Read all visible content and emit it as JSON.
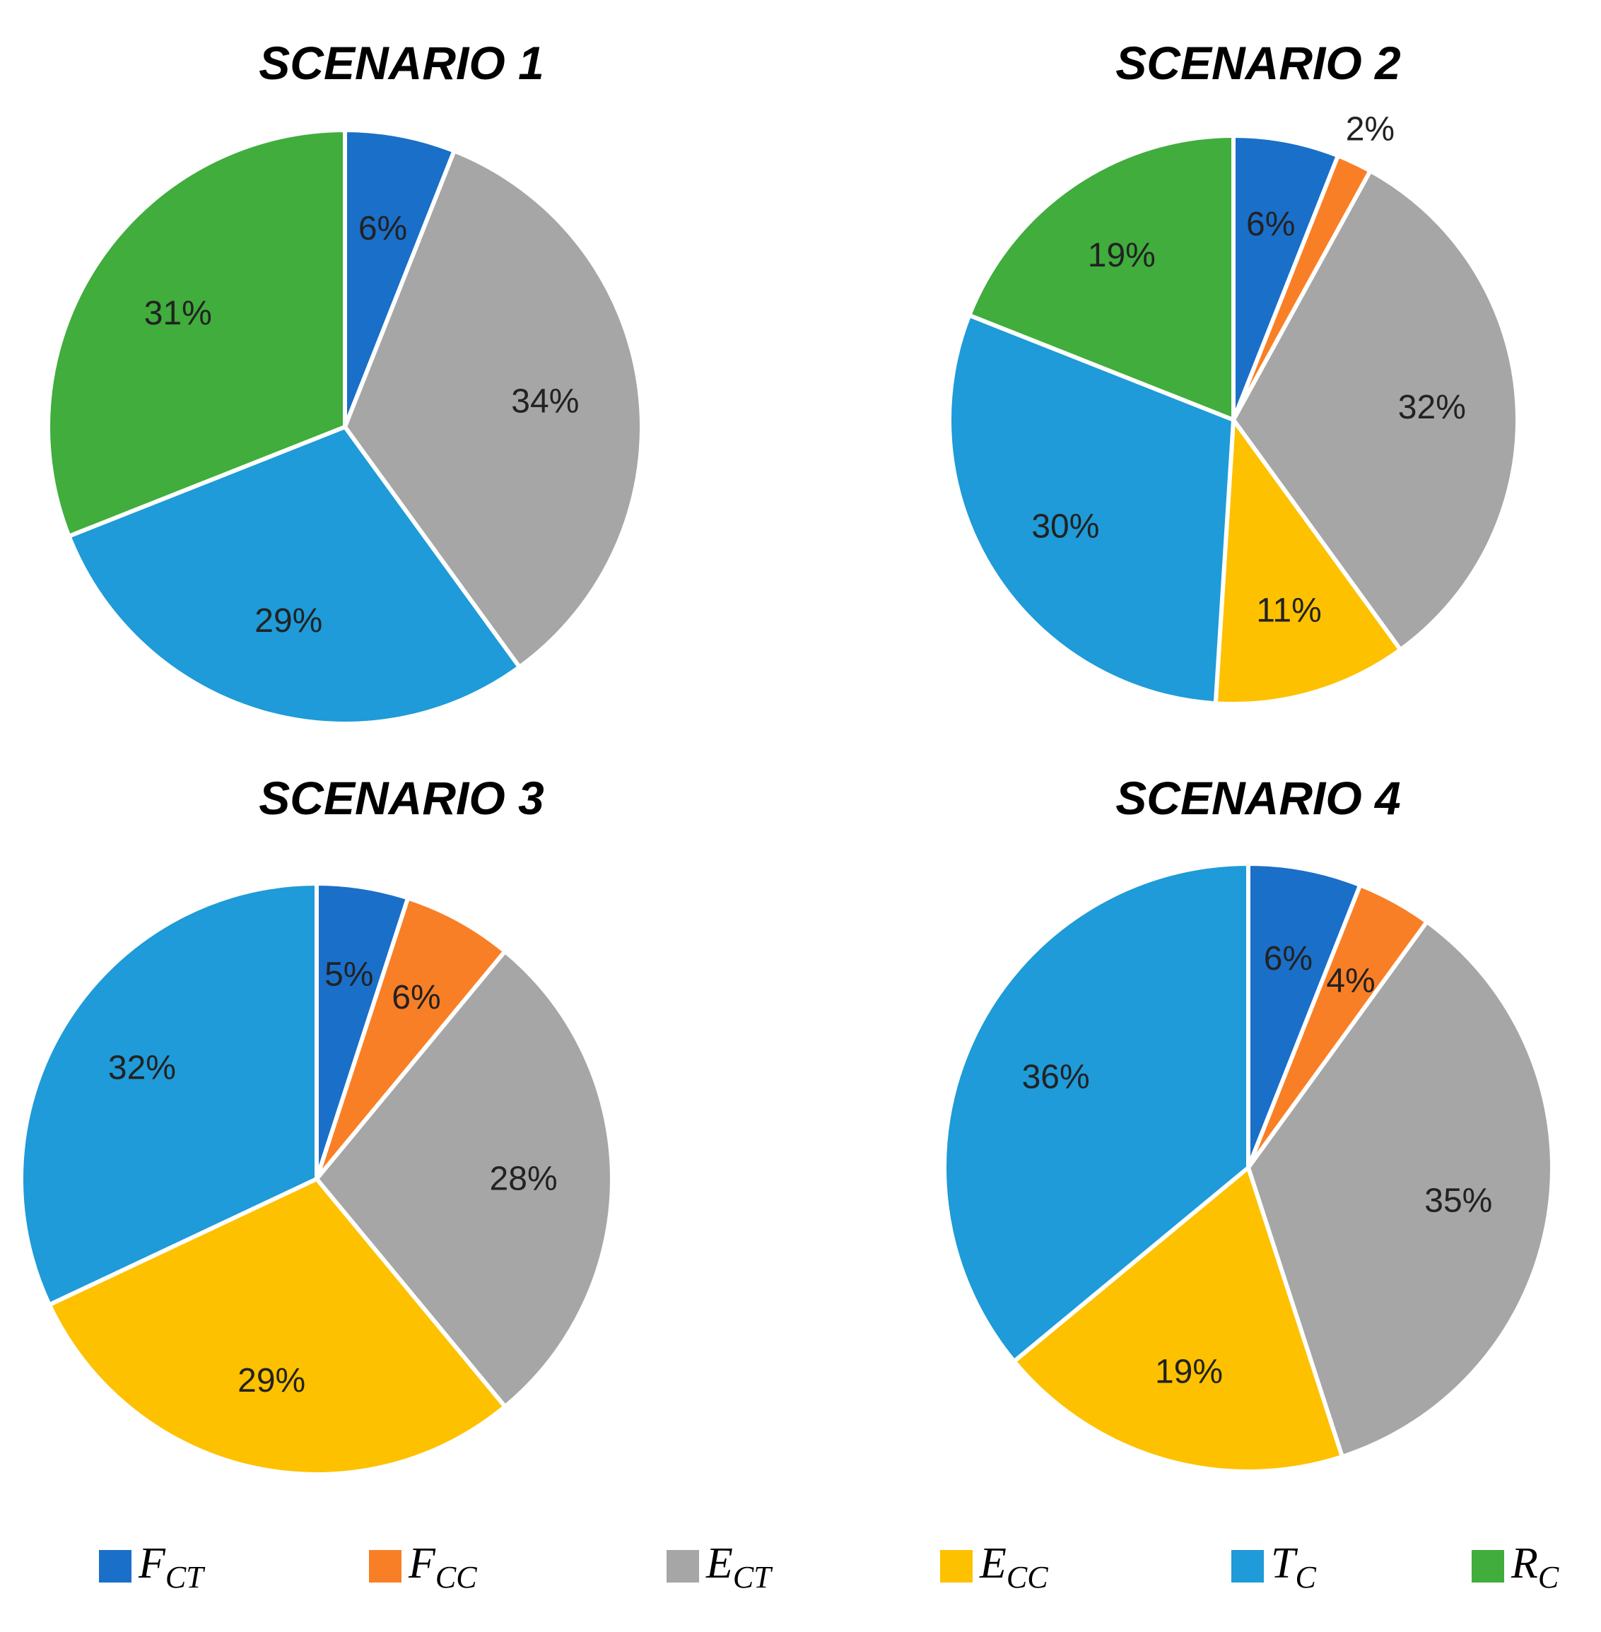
{
  "colors": {
    "F_CT": "#1a6fc9",
    "F_CC": "#f97f26",
    "E_CT": "#a6a6a6",
    "E_CC": "#fdc100",
    "T_C": "#1e9bd8",
    "R_C": "#40ad3d"
  },
  "legend": [
    {
      "key": "F_CT",
      "main": "F",
      "sub": "CT"
    },
    {
      "key": "F_CC",
      "main": "F",
      "sub": "CC"
    },
    {
      "key": "E_CT",
      "main": "E",
      "sub": "CT"
    },
    {
      "key": "E_CC",
      "main": "E",
      "sub": "CC"
    },
    {
      "key": "T_C",
      "main": "T",
      "sub": "C"
    },
    {
      "key": "R_C",
      "main": "R",
      "sub": "C"
    }
  ],
  "chart_data": [
    {
      "type": "pie",
      "title": "SCENARIO 1",
      "slices": [
        {
          "key": "F_CT",
          "value": 6,
          "label": "6%"
        },
        {
          "key": "E_CT",
          "value": 34,
          "label": "34%"
        },
        {
          "key": "T_C",
          "value": 29,
          "label": "29%"
        },
        {
          "key": "R_C",
          "value": 31,
          "label": "31%"
        }
      ]
    },
    {
      "type": "pie",
      "title": "SCENARIO 2",
      "slices": [
        {
          "key": "F_CT",
          "value": 6,
          "label": "6%"
        },
        {
          "key": "F_CC",
          "value": 2,
          "label": "2%"
        },
        {
          "key": "E_CT",
          "value": 32,
          "label": "32%"
        },
        {
          "key": "E_CC",
          "value": 11,
          "label": "11%"
        },
        {
          "key": "T_C",
          "value": 30,
          "label": "30%"
        },
        {
          "key": "R_C",
          "value": 19,
          "label": "19%"
        }
      ]
    },
    {
      "type": "pie",
      "title": "SCENARIO 3",
      "slices": [
        {
          "key": "F_CT",
          "value": 5,
          "label": "5%"
        },
        {
          "key": "F_CC",
          "value": 6,
          "label": "6%"
        },
        {
          "key": "E_CT",
          "value": 28,
          "label": "28%"
        },
        {
          "key": "E_CC",
          "value": 29,
          "label": "29%"
        },
        {
          "key": "T_C",
          "value": 32,
          "label": "32%"
        }
      ]
    },
    {
      "type": "pie",
      "title": "SCENARIO 4",
      "slices": [
        {
          "key": "F_CT",
          "value": 6,
          "label": "6%"
        },
        {
          "key": "F_CC",
          "value": 4,
          "label": "4%"
        },
        {
          "key": "E_CT",
          "value": 35,
          "label": "35%"
        },
        {
          "key": "E_CC",
          "value": 19,
          "label": "19%"
        },
        {
          "key": "T_C",
          "value": 36,
          "label": "36%"
        }
      ]
    }
  ]
}
